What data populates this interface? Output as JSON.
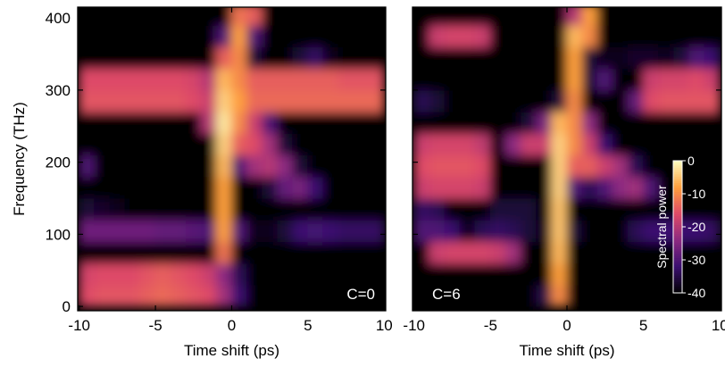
{
  "chart_data": [
    {
      "type": "heatmap",
      "xlabel": "Time shift (ps)",
      "ylabel": "Frequency (THz)",
      "annotation": "C=0",
      "xlim": [
        -10.1,
        10.1
      ],
      "ylim": [
        -6,
        415
      ],
      "xticks": [
        -10,
        -5,
        0,
        5,
        10
      ],
      "yticks": [
        0,
        100,
        200,
        300,
        400
      ],
      "show_ytick_labels": true,
      "clim": [
        -40,
        0
      ],
      "colormap": [
        "#000000",
        "#3b0f70",
        "#8c2981",
        "#de4968",
        "#fe9f3c",
        "#fcfdbf"
      ],
      "x": [
        -9.5,
        -8.5,
        -7.5,
        -6.5,
        -5.5,
        -4.5,
        -3.5,
        -2.5,
        -1.5,
        -0.5,
        0.5,
        1.5,
        2.5,
        3.5,
        4.5,
        5.5,
        6.5,
        7.5,
        8.5,
        9.5
      ],
      "y": [
        15,
        45,
        75,
        105,
        135,
        165,
        195,
        225,
        255,
        285,
        315,
        345,
        375,
        405
      ],
      "values": [
        [
          -16,
          -15,
          -15,
          -15,
          -14,
          -13,
          -14,
          -15,
          -16,
          -22,
          -32,
          -40,
          -40,
          -40,
          -40,
          -40,
          -40,
          -40,
          -40,
          -40
        ],
        [
          -17,
          -16,
          -16,
          -16,
          -15,
          -14,
          -15,
          -16,
          -18,
          -24,
          -34,
          -40,
          -40,
          -40,
          -40,
          -40,
          -40,
          -40,
          -40,
          -40
        ],
        [
          -40,
          -40,
          -40,
          -40,
          -40,
          -40,
          -40,
          -40,
          -40,
          -12,
          -40,
          -40,
          -40,
          -40,
          -40,
          -40,
          -40,
          -40,
          -40,
          -40
        ],
        [
          -27,
          -27,
          -27,
          -27,
          -27,
          -28,
          -28,
          -29,
          -30,
          -8,
          -30,
          -38,
          -38,
          -36,
          -32,
          -31,
          -32,
          -33,
          -33,
          -33
        ],
        [
          -36,
          -37,
          -38,
          -40,
          -40,
          -40,
          -40,
          -40,
          -40,
          -8,
          -40,
          -40,
          -40,
          -40,
          -40,
          -40,
          -40,
          -40,
          -40,
          -40
        ],
        [
          -40,
          -40,
          -40,
          -40,
          -40,
          -40,
          -40,
          -40,
          -40,
          -8,
          -40,
          -40,
          -36,
          -28,
          -26,
          -32,
          -40,
          -40,
          -40,
          -40
        ],
        [
          -30,
          -40,
          -40,
          -40,
          -40,
          -40,
          -40,
          -40,
          -40,
          -6,
          -30,
          -22,
          -20,
          -24,
          -36,
          -40,
          -40,
          -40,
          -40,
          -40
        ],
        [
          -40,
          -40,
          -40,
          -40,
          -40,
          -40,
          -40,
          -40,
          -40,
          -4,
          -14,
          -16,
          -22,
          -36,
          -40,
          -40,
          -40,
          -40,
          -40,
          -40
        ],
        [
          -40,
          -40,
          -40,
          -40,
          -40,
          -40,
          -40,
          -40,
          -20,
          -2,
          -10,
          -18,
          -30,
          -40,
          -40,
          -40,
          -40,
          -40,
          -40,
          -40
        ],
        [
          -15,
          -15,
          -15,
          -15,
          -15,
          -15,
          -15,
          -16,
          -18,
          -4,
          -8,
          -13,
          -13,
          -13,
          -13,
          -13,
          -13,
          -13,
          -13,
          -13
        ],
        [
          -16,
          -16,
          -16,
          -16,
          -16,
          -16,
          -16,
          -17,
          -20,
          -6,
          -10,
          -14,
          -14,
          -14,
          -14,
          -14,
          -14,
          -15,
          -15,
          -15
        ],
        [
          -40,
          -40,
          -40,
          -40,
          -40,
          -40,
          -40,
          -40,
          -40,
          -14,
          -10,
          -36,
          -40,
          -40,
          -36,
          -33,
          -38,
          -40,
          -40,
          -40
        ],
        [
          -40,
          -40,
          -40,
          -40,
          -40,
          -40,
          -40,
          -40,
          -40,
          -30,
          -8,
          -30,
          -40,
          -40,
          -40,
          -40,
          -40,
          -40,
          -40,
          -40
        ],
        [
          -40,
          -40,
          -40,
          -40,
          -40,
          -40,
          -40,
          -40,
          -40,
          -40,
          -12,
          -14,
          -40,
          -40,
          -40,
          -40,
          -40,
          -40,
          -40,
          -40
        ]
      ]
    },
    {
      "type": "heatmap",
      "xlabel": "Time shift (ps)",
      "annotation": "C=6",
      "xlim": [
        -10.1,
        10.1
      ],
      "ylim": [
        -6,
        415
      ],
      "xticks": [
        -10,
        -5,
        0,
        5,
        10
      ],
      "yticks": [
        0,
        100,
        200,
        300,
        400
      ],
      "show_ytick_labels": false,
      "clim": [
        -40,
        0
      ],
      "colormap": [
        "#000000",
        "#3b0f70",
        "#8c2981",
        "#de4968",
        "#fe9f3c",
        "#fcfdbf"
      ],
      "colorbar": {
        "label": "Spectral power",
        "ticks": [
          0,
          -10,
          -20,
          -30,
          -40
        ]
      },
      "x": [
        -9.5,
        -8.5,
        -7.5,
        -6.5,
        -5.5,
        -4.5,
        -3.5,
        -2.5,
        -1.5,
        -0.5,
        0.5,
        1.5,
        2.5,
        3.5,
        4.5,
        5.5,
        6.5,
        7.5,
        8.5,
        9.5
      ],
      "y": [
        15,
        45,
        75,
        105,
        135,
        165,
        195,
        225,
        255,
        285,
        315,
        345,
        375,
        405
      ],
      "values": [
        [
          -40,
          -40,
          -40,
          -40,
          -40,
          -40,
          -40,
          -40,
          -35,
          -10,
          -40,
          -40,
          -40,
          -40,
          -40,
          -40,
          -40,
          -40,
          -40,
          -40
        ],
        [
          -40,
          -40,
          -40,
          -40,
          -40,
          -40,
          -40,
          -40,
          -40,
          -8,
          -40,
          -40,
          -40,
          -40,
          -40,
          -40,
          -40,
          -40,
          -40,
          -40
        ],
        [
          -40,
          -18,
          -17,
          -17,
          -17,
          -18,
          -22,
          -40,
          -40,
          -6,
          -40,
          -40,
          -40,
          -40,
          -40,
          -40,
          -40,
          -40,
          -40,
          -40
        ],
        [
          -30,
          -30,
          -32,
          -38,
          -34,
          -33,
          -34,
          -36,
          -38,
          -5,
          -36,
          -40,
          -40,
          -40,
          -34,
          -32,
          -32,
          -32,
          -32,
          -33
        ],
        [
          -33,
          -34,
          -40,
          -40,
          -40,
          -36,
          -36,
          -36,
          -40,
          -5,
          -40,
          -40,
          -40,
          -40,
          -40,
          -40,
          -40,
          -40,
          -40,
          -40
        ],
        [
          -18,
          -17,
          -17,
          -17,
          -18,
          -40,
          -40,
          -40,
          -40,
          -4,
          -30,
          -34,
          -30,
          -24,
          -22,
          -30,
          -40,
          -40,
          -40,
          -40
        ],
        [
          -16,
          -15,
          -15,
          -15,
          -16,
          -40,
          -40,
          -40,
          -40,
          -4,
          -14,
          -14,
          -18,
          -22,
          -34,
          -40,
          -40,
          -40,
          -40,
          -40
        ],
        [
          -18,
          -17,
          -17,
          -17,
          -19,
          -40,
          -24,
          -18,
          -18,
          -4,
          -10,
          -18,
          -32,
          -40,
          -40,
          -40,
          -40,
          -40,
          -40,
          -40
        ],
        [
          -40,
          -40,
          -40,
          -40,
          -40,
          -40,
          -40,
          -36,
          -26,
          -6,
          -10,
          -24,
          -40,
          -40,
          -40,
          -40,
          -40,
          -40,
          -40,
          -40
        ],
        [
          -34,
          -36,
          -40,
          -40,
          -40,
          -40,
          -40,
          -40,
          -40,
          -36,
          -10,
          -40,
          -40,
          -40,
          -28,
          -16,
          -15,
          -15,
          -15,
          -15
        ],
        [
          -40,
          -40,
          -40,
          -40,
          -40,
          -40,
          -40,
          -40,
          -40,
          -40,
          -8,
          -36,
          -30,
          -40,
          -40,
          -18,
          -17,
          -17,
          -16,
          -18
        ],
        [
          -40,
          -40,
          -40,
          -40,
          -40,
          -40,
          -40,
          -40,
          -40,
          -40,
          -8,
          -36,
          -38,
          -38,
          -37,
          -37,
          -38,
          -36,
          -30,
          -32
        ],
        [
          -40,
          -18,
          -17,
          -17,
          -18,
          -40,
          -40,
          -40,
          -40,
          -40,
          -6,
          -10,
          -40,
          -40,
          -40,
          -40,
          -40,
          -40,
          -40,
          -40
        ],
        [
          -40,
          -40,
          -40,
          -40,
          -40,
          -40,
          -40,
          -40,
          -40,
          -40,
          -20,
          -8,
          -40,
          -40,
          -40,
          -40,
          -40,
          -40,
          -40,
          -40
        ]
      ]
    }
  ]
}
